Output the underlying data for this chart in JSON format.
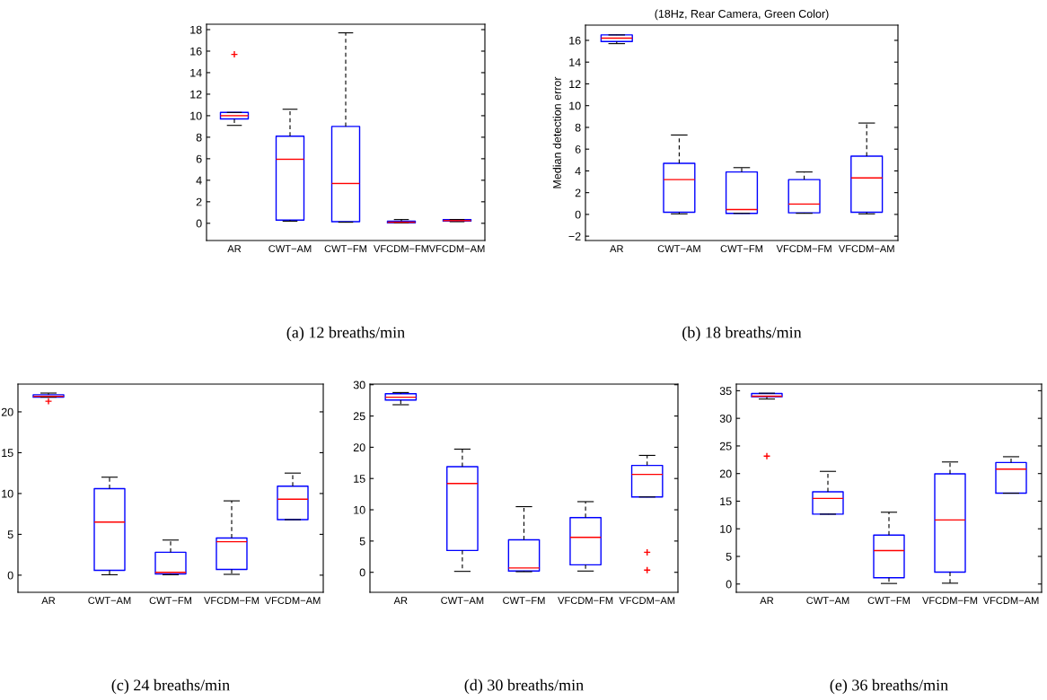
{
  "chart_data": [
    {
      "type": "box",
      "categories": [
        "AR",
        "CWT−AM",
        "CWT−FM",
        "VFCDM−FM",
        "VFCDM−AM"
      ],
      "ylim": [
        -1.6,
        18.5
      ],
      "yticks": [
        0,
        2,
        4,
        6,
        8,
        10,
        12,
        14,
        16,
        18
      ],
      "grid": false,
      "annotations": [
        "(a) 12 breaths/min"
      ],
      "series": [
        {
          "color": "#0000ff",
          "boxes": [
            {
              "low": 9.1,
              "q1": 9.7,
              "median": 10.0,
              "q3": 10.3,
              "high": 10.3,
              "outliers": [
                15.7
              ]
            },
            {
              "low": 0.2,
              "q1": 0.3,
              "median": 5.95,
              "q3": 8.1,
              "high": 10.6
            },
            {
              "low": 0.1,
              "q1": 0.15,
              "median": 3.7,
              "q3": 9.0,
              "high": 17.7
            },
            {
              "low": 0.05,
              "q1": 0.05,
              "median": 0.1,
              "q3": 0.2,
              "high": 0.35
            },
            {
              "low": 0.15,
              "q1": 0.2,
              "median": 0.25,
              "q3": 0.35,
              "high": 0.35
            }
          ]
        }
      ]
    },
    {
      "type": "box",
      "title": "(18Hz, Rear Camera, Green Color)",
      "ylabel": "Median detection error",
      "categories": [
        "AR",
        "CWT−AM",
        "CWT−FM",
        "VFCDM−FM",
        "VFCDM−AM"
      ],
      "ylim": [
        -2.4,
        17.4
      ],
      "yticks": [
        {
          "value": -2,
          "label": "−2"
        },
        0,
        2,
        4,
        6,
        8,
        10,
        12,
        14,
        16
      ],
      "grid": false,
      "annotations": [
        "(b) 18 breaths/min"
      ],
      "series": [
        {
          "color": "#0000ff",
          "boxes": [
            {
              "low": 15.7,
              "q1": 15.9,
              "median": 16.2,
              "q3": 16.5,
              "high": 16.5
            },
            {
              "low": 0.05,
              "q1": 0.2,
              "median": 3.2,
              "q3": 4.7,
              "high": 7.3
            },
            {
              "low": 0.1,
              "q1": 0.1,
              "median": 0.45,
              "q3": 3.9,
              "high": 4.3
            },
            {
              "low": 0.1,
              "q1": 0.15,
              "median": 0.95,
              "q3": 3.2,
              "high": 3.9
            },
            {
              "low": 0.05,
              "q1": 0.2,
              "median": 3.35,
              "q3": 5.35,
              "high": 8.4
            }
          ]
        }
      ]
    },
    {
      "type": "box",
      "categories": [
        "AR",
        "CWT−AM",
        "CWT−FM",
        "VFCDM−FM",
        "VFCDM−AM"
      ],
      "ylim": [
        -2.1,
        23.4
      ],
      "yticks": [
        0,
        5,
        10,
        15,
        20
      ],
      "grid": false,
      "annotations": [
        "(c) 24 breaths/min"
      ],
      "series": [
        {
          "color": "#0000ff",
          "boxes": [
            {
              "low": 21.8,
              "q1": 21.8,
              "median": 21.9,
              "q3": 22.1,
              "high": 22.3,
              "outliers": [
                21.3
              ]
            },
            {
              "low": 0.05,
              "q1": 0.6,
              "median": 6.5,
              "q3": 10.6,
              "high": 12.0
            },
            {
              "low": 0.05,
              "q1": 0.15,
              "median": 0.35,
              "q3": 2.8,
              "high": 4.3
            },
            {
              "low": 0.1,
              "q1": 0.7,
              "median": 4.1,
              "q3": 4.55,
              "high": 9.1
            },
            {
              "low": 6.8,
              "q1": 6.8,
              "median": 9.3,
              "q3": 10.9,
              "high": 12.5
            }
          ]
        }
      ]
    },
    {
      "type": "box",
      "categories": [
        "AR",
        "CWT−AM",
        "CWT−FM",
        "VFCDM−FM",
        "VFCDM−AM"
      ],
      "ylim": [
        -3.2,
        30.1
      ],
      "yticks": [
        0,
        5,
        10,
        15,
        20,
        25,
        30
      ],
      "grid": false,
      "annotations": [
        "(d) 30 breaths/min"
      ],
      "series": [
        {
          "color": "#0000ff",
          "boxes": [
            {
              "low": 26.8,
              "q1": 27.55,
              "median": 28.0,
              "q3": 28.55,
              "high": 28.75
            },
            {
              "low": 0.15,
              "q1": 3.5,
              "median": 14.2,
              "q3": 16.9,
              "high": 19.7
            },
            {
              "low": 0.1,
              "q1": 0.2,
              "median": 0.7,
              "q3": 5.2,
              "high": 10.5
            },
            {
              "low": 0.2,
              "q1": 1.2,
              "median": 5.6,
              "q3": 8.75,
              "high": 11.3
            },
            {
              "low": 12.05,
              "q1": 12.05,
              "median": 15.65,
              "q3": 17.1,
              "high": 18.7,
              "outliers": [
                3.2,
                0.35
              ]
            }
          ]
        }
      ]
    },
    {
      "type": "box",
      "categories": [
        "AR",
        "CWT−AM",
        "CWT−FM",
        "VFCDM−FM",
        "VFCDM−AM"
      ],
      "ylim": [
        -1.5,
        36.2
      ],
      "yticks": [
        0,
        5,
        10,
        15,
        20,
        25,
        30,
        35
      ],
      "grid": false,
      "annotations": [
        "(e) 36 breaths/min"
      ],
      "series": [
        {
          "color": "#0000ff",
          "boxes": [
            {
              "low": 33.5,
              "q1": 33.9,
              "median": 34.0,
              "q3": 34.5,
              "high": 34.55,
              "outliers": [
                23.15
              ]
            },
            {
              "low": 12.65,
              "q1": 12.65,
              "median": 15.5,
              "q3": 16.7,
              "high": 20.4
            },
            {
              "low": 0.1,
              "q1": 1.15,
              "median": 6.05,
              "q3": 8.85,
              "high": 13.0
            },
            {
              "low": 0.15,
              "q1": 2.15,
              "median": 11.6,
              "q3": 19.95,
              "high": 22.1
            },
            {
              "low": 16.45,
              "q1": 16.45,
              "median": 20.8,
              "q3": 22.0,
              "high": 23.05
            }
          ]
        }
      ]
    }
  ]
}
